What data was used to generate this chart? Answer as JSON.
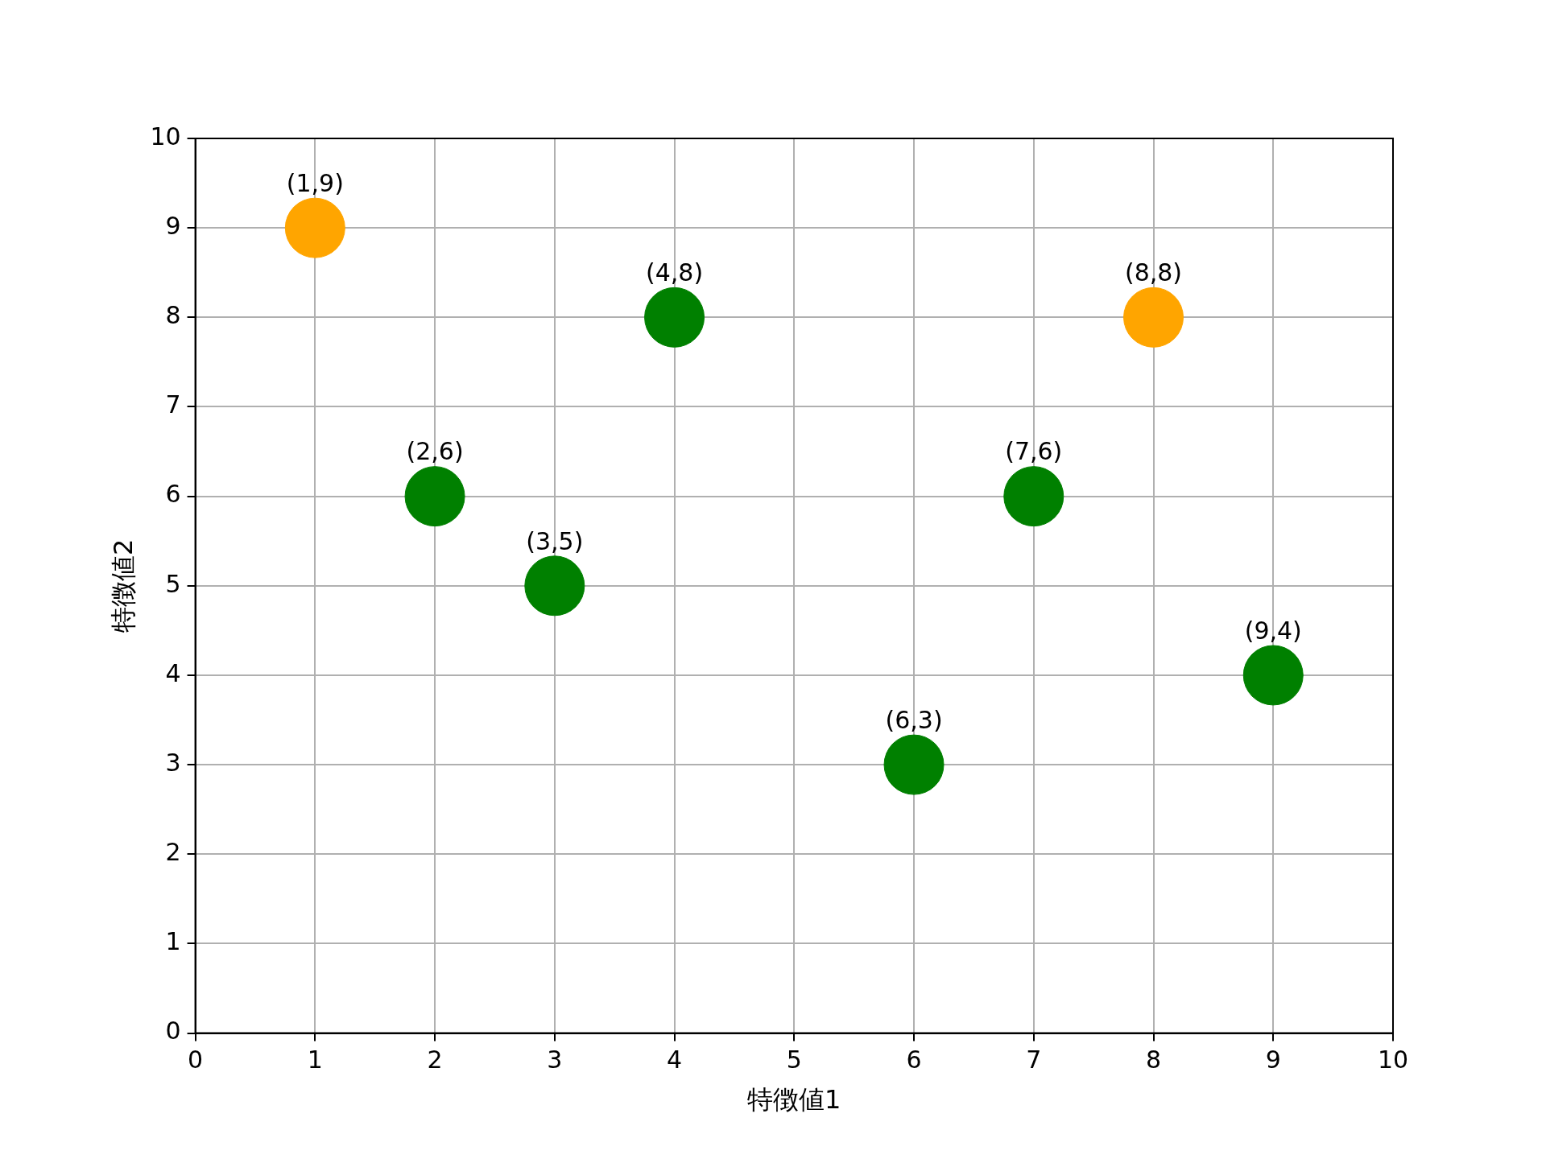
{
  "chart_data": {
    "type": "scatter",
    "xlabel": "特徴値1",
    "ylabel": "特徴値2",
    "x": [
      1,
      2,
      3,
      4,
      6,
      7,
      8,
      9
    ],
    "values": [
      9,
      6,
      5,
      8,
      3,
      6,
      8,
      4
    ],
    "colors": [
      "#ffa500",
      "#008000",
      "#008000",
      "#008000",
      "#008000",
      "#008000",
      "#ffa500",
      "#008000"
    ],
    "annotations": [
      {
        "text": "(1,9)",
        "x": 1,
        "y": 9
      },
      {
        "text": "(2,6)",
        "x": 2,
        "y": 6
      },
      {
        "text": "(3,5)",
        "x": 3,
        "y": 5
      },
      {
        "text": "(4,8)",
        "x": 4,
        "y": 8
      },
      {
        "text": "(6,3)",
        "x": 6,
        "y": 3
      },
      {
        "text": "(7,6)",
        "x": 7,
        "y": 6
      },
      {
        "text": "(8,8)",
        "x": 8,
        "y": 8
      },
      {
        "text": "(9,4)",
        "x": 9,
        "y": 4
      }
    ],
    "xlim": [
      0,
      10
    ],
    "xticks": [
      0,
      1,
      2,
      3,
      4,
      5,
      6,
      7,
      8,
      9,
      10
    ],
    "ylim": [
      0,
      10
    ],
    "yticks": [
      0,
      1,
      2,
      3,
      4,
      5,
      6,
      7,
      8,
      9,
      10
    ],
    "grid": true,
    "marker": "circle"
  }
}
